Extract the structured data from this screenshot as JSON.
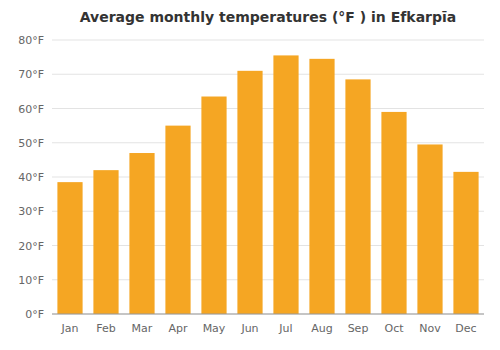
{
  "chart_data": {
    "type": "bar",
    "title": "Average monthly temperatures (°F ) in Efkarpīa",
    "categories": [
      "Jan",
      "Feb",
      "Mar",
      "Apr",
      "May",
      "Jun",
      "Jul",
      "Aug",
      "Sep",
      "Oct",
      "Nov",
      "Dec"
    ],
    "values": [
      38.5,
      42.0,
      47.0,
      55.0,
      63.5,
      71.0,
      75.5,
      74.5,
      68.5,
      59.0,
      49.5,
      41.5
    ],
    "color": "#F5A623",
    "ylim": [
      0,
      80
    ],
    "yticks": [
      {
        "value": 0,
        "label": "0°F"
      },
      {
        "value": 10,
        "label": "10°F"
      },
      {
        "value": 20,
        "label": "20°F"
      },
      {
        "value": 30,
        "label": "30°F"
      },
      {
        "value": 40,
        "label": "40°F"
      },
      {
        "value": 50,
        "label": "50°F"
      },
      {
        "value": 60,
        "label": "60°F"
      },
      {
        "value": 70,
        "label": "70°F"
      },
      {
        "value": 80,
        "label": "80°F"
      }
    ],
    "grid": true
  }
}
